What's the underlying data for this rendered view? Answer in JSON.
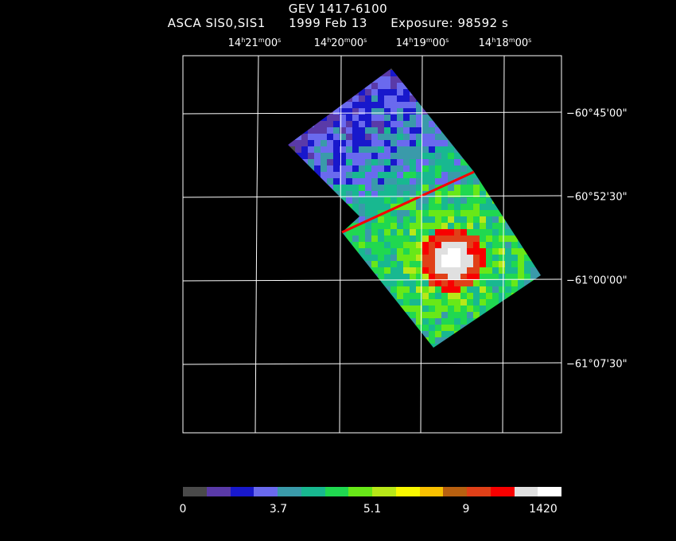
{
  "title": "GEV 1417-6100",
  "subtitle": {
    "instrument": "ASCA SIS0,SIS1",
    "date": "1999 Feb 13",
    "exposure": "Exposure: 98592 s"
  },
  "ra_axis": [
    {
      "h": "14",
      "m": "21",
      "s": "00"
    },
    {
      "h": "14",
      "m": "20",
      "s": "00"
    },
    {
      "h": "14",
      "m": "19",
      "s": "00"
    },
    {
      "h": "14",
      "m": "18",
      "s": "00"
    }
  ],
  "dec_axis": [
    "−60°45'00\"",
    "−60°52'30\"",
    "−61°00'00\"",
    "−61°07'30\""
  ],
  "colorbar": {
    "colors": [
      "#4a4a4a",
      "#5a3aa8",
      "#1818cc",
      "#6a6aee",
      "#3a9aaa",
      "#18b890",
      "#20d850",
      "#68e818",
      "#b8e818",
      "#f8f800",
      "#f8c000",
      "#b86010",
      "#e04018",
      "#f80000",
      "#e0e0e0",
      "#ffffff"
    ],
    "labels": [
      "0",
      "3.7",
      "5.1",
      "9",
      "1420"
    ]
  },
  "image_colors": {
    "bg_low": "#4a4a4a",
    "blue": "#1818cc",
    "cyan": "#18b890",
    "green": "#20d850",
    "yellow": "#f8f800",
    "orange": "#f8c000",
    "red": "#f80000",
    "white": "#ffffff"
  }
}
